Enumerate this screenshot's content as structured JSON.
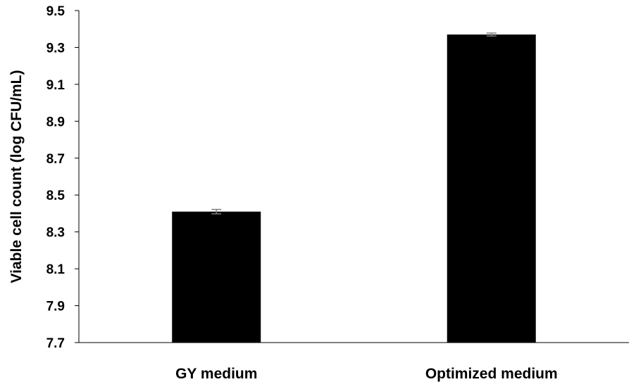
{
  "chart_data": {
    "type": "bar",
    "title": "",
    "xlabel": "",
    "ylabel": "Viable cell count (log CFU/mL)",
    "categories": [
      "GY medium",
      "Optimized medium"
    ],
    "series": [
      {
        "values": [
          8.41,
          9.37
        ],
        "errors": [
          0.012,
          0.008
        ]
      }
    ],
    "ylim": [
      7.7,
      9.5
    ],
    "yticks": [
      "7.7",
      "7.9",
      "8.1",
      "8.3",
      "8.5",
      "8.7",
      "8.9",
      "9.1",
      "9.3",
      "9.5"
    ],
    "grid": false,
    "legend": "none",
    "colors": {
      "bar": "#000000",
      "error_bar": "#7f7f7f",
      "axis": "#000000"
    }
  }
}
